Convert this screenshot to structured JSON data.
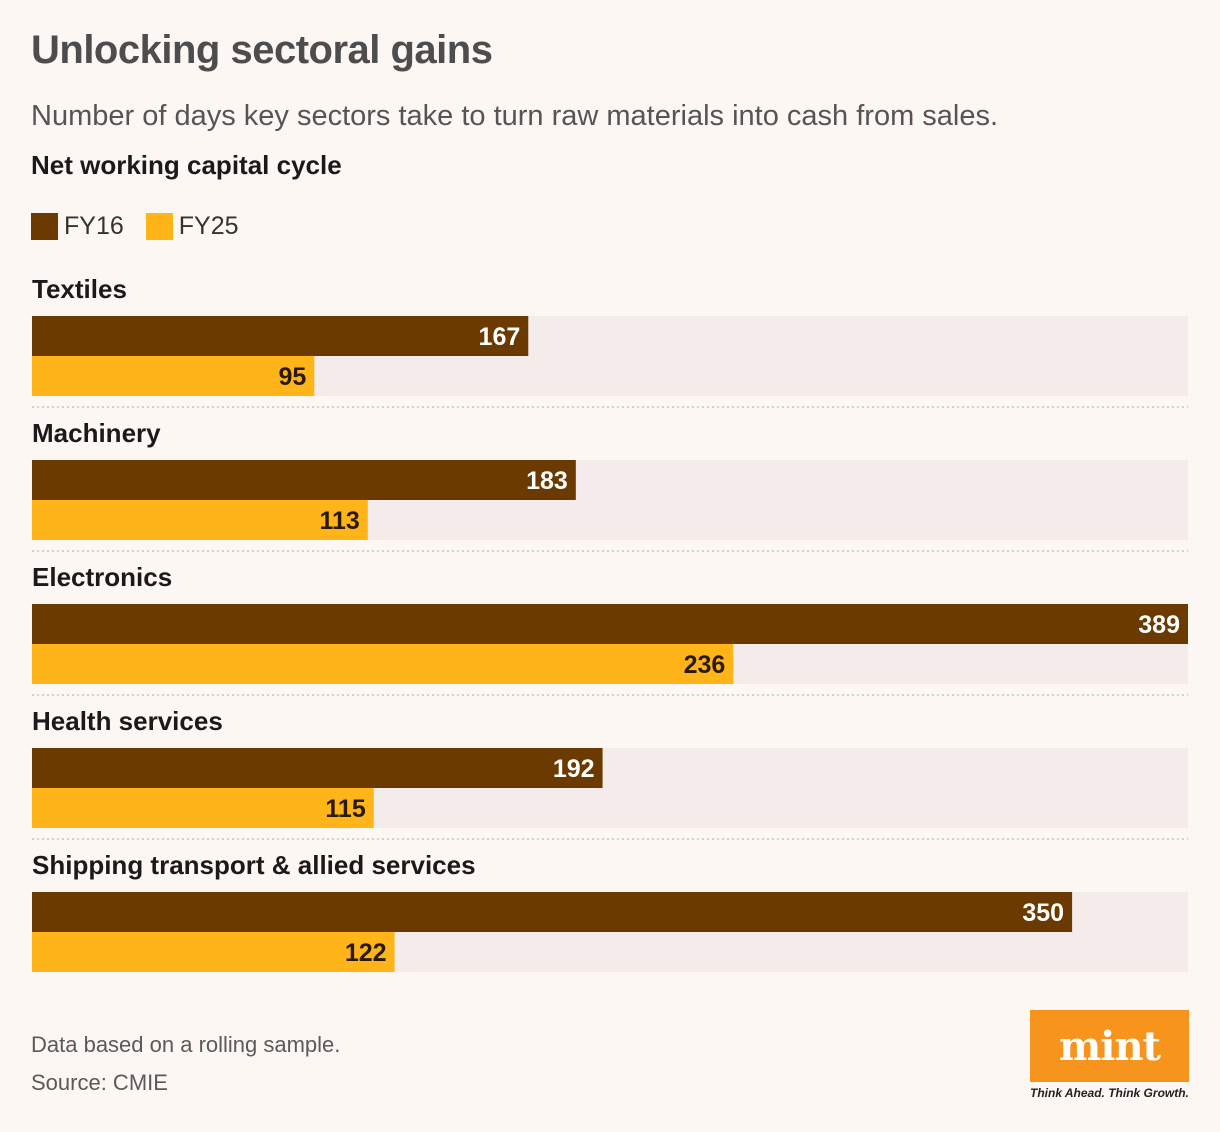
{
  "chart_data": {
    "type": "bar",
    "orientation": "horizontal",
    "title": "Unlocking sectoral gains",
    "subtitle": "Number of days key sectors take to turn raw materials into cash from sales.",
    "section_label": "Net working capital cycle",
    "xlim": [
      0,
      389
    ],
    "categories": [
      "Textiles",
      "Machinery",
      "Electronics",
      "Health services",
      "Shipping transport & allied services"
    ],
    "series": [
      {
        "name": "FY16",
        "color": "#6b3a00",
        "values": [
          167,
          183,
          389,
          192,
          350
        ]
      },
      {
        "name": "FY25",
        "color": "#ffb41a",
        "values": [
          95,
          113,
          236,
          115,
          122
        ]
      }
    ],
    "legend_position": "top-left",
    "grid": false
  },
  "footer": {
    "note": "Data based on a rolling sample.",
    "source": "Source: CMIE"
  },
  "logo": {
    "name": "mint",
    "tagline": "Think Ahead. Think Growth.",
    "color": "#f7941d"
  }
}
